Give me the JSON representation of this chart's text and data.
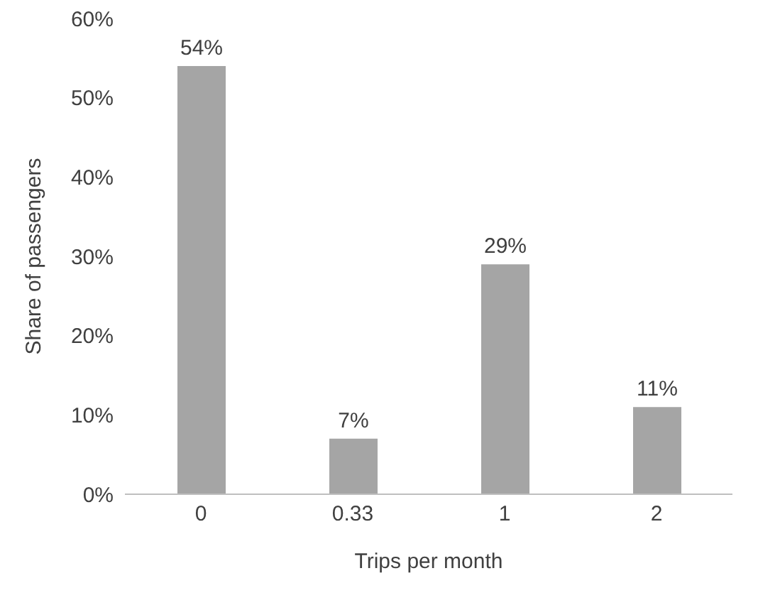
{
  "chart_data": {
    "type": "bar",
    "categories": [
      "0",
      "0.33",
      "1",
      "2"
    ],
    "values": [
      54,
      7,
      29,
      11
    ],
    "value_labels": [
      "54%",
      "7%",
      "29%",
      "11%"
    ],
    "color": "#a5a5a5",
    "xlabel": "Trips per month",
    "ylabel": "Share of passengers",
    "ylim": [
      0,
      60
    ],
    "yticks": [
      {
        "value": 0,
        "label": "0%"
      },
      {
        "value": 10,
        "label": "10%"
      },
      {
        "value": 20,
        "label": "20%"
      },
      {
        "value": 30,
        "label": "30%"
      },
      {
        "value": 40,
        "label": "40%"
      },
      {
        "value": 50,
        "label": "50%"
      },
      {
        "value": 60,
        "label": "60%"
      }
    ],
    "grid": false,
    "legend": false
  }
}
